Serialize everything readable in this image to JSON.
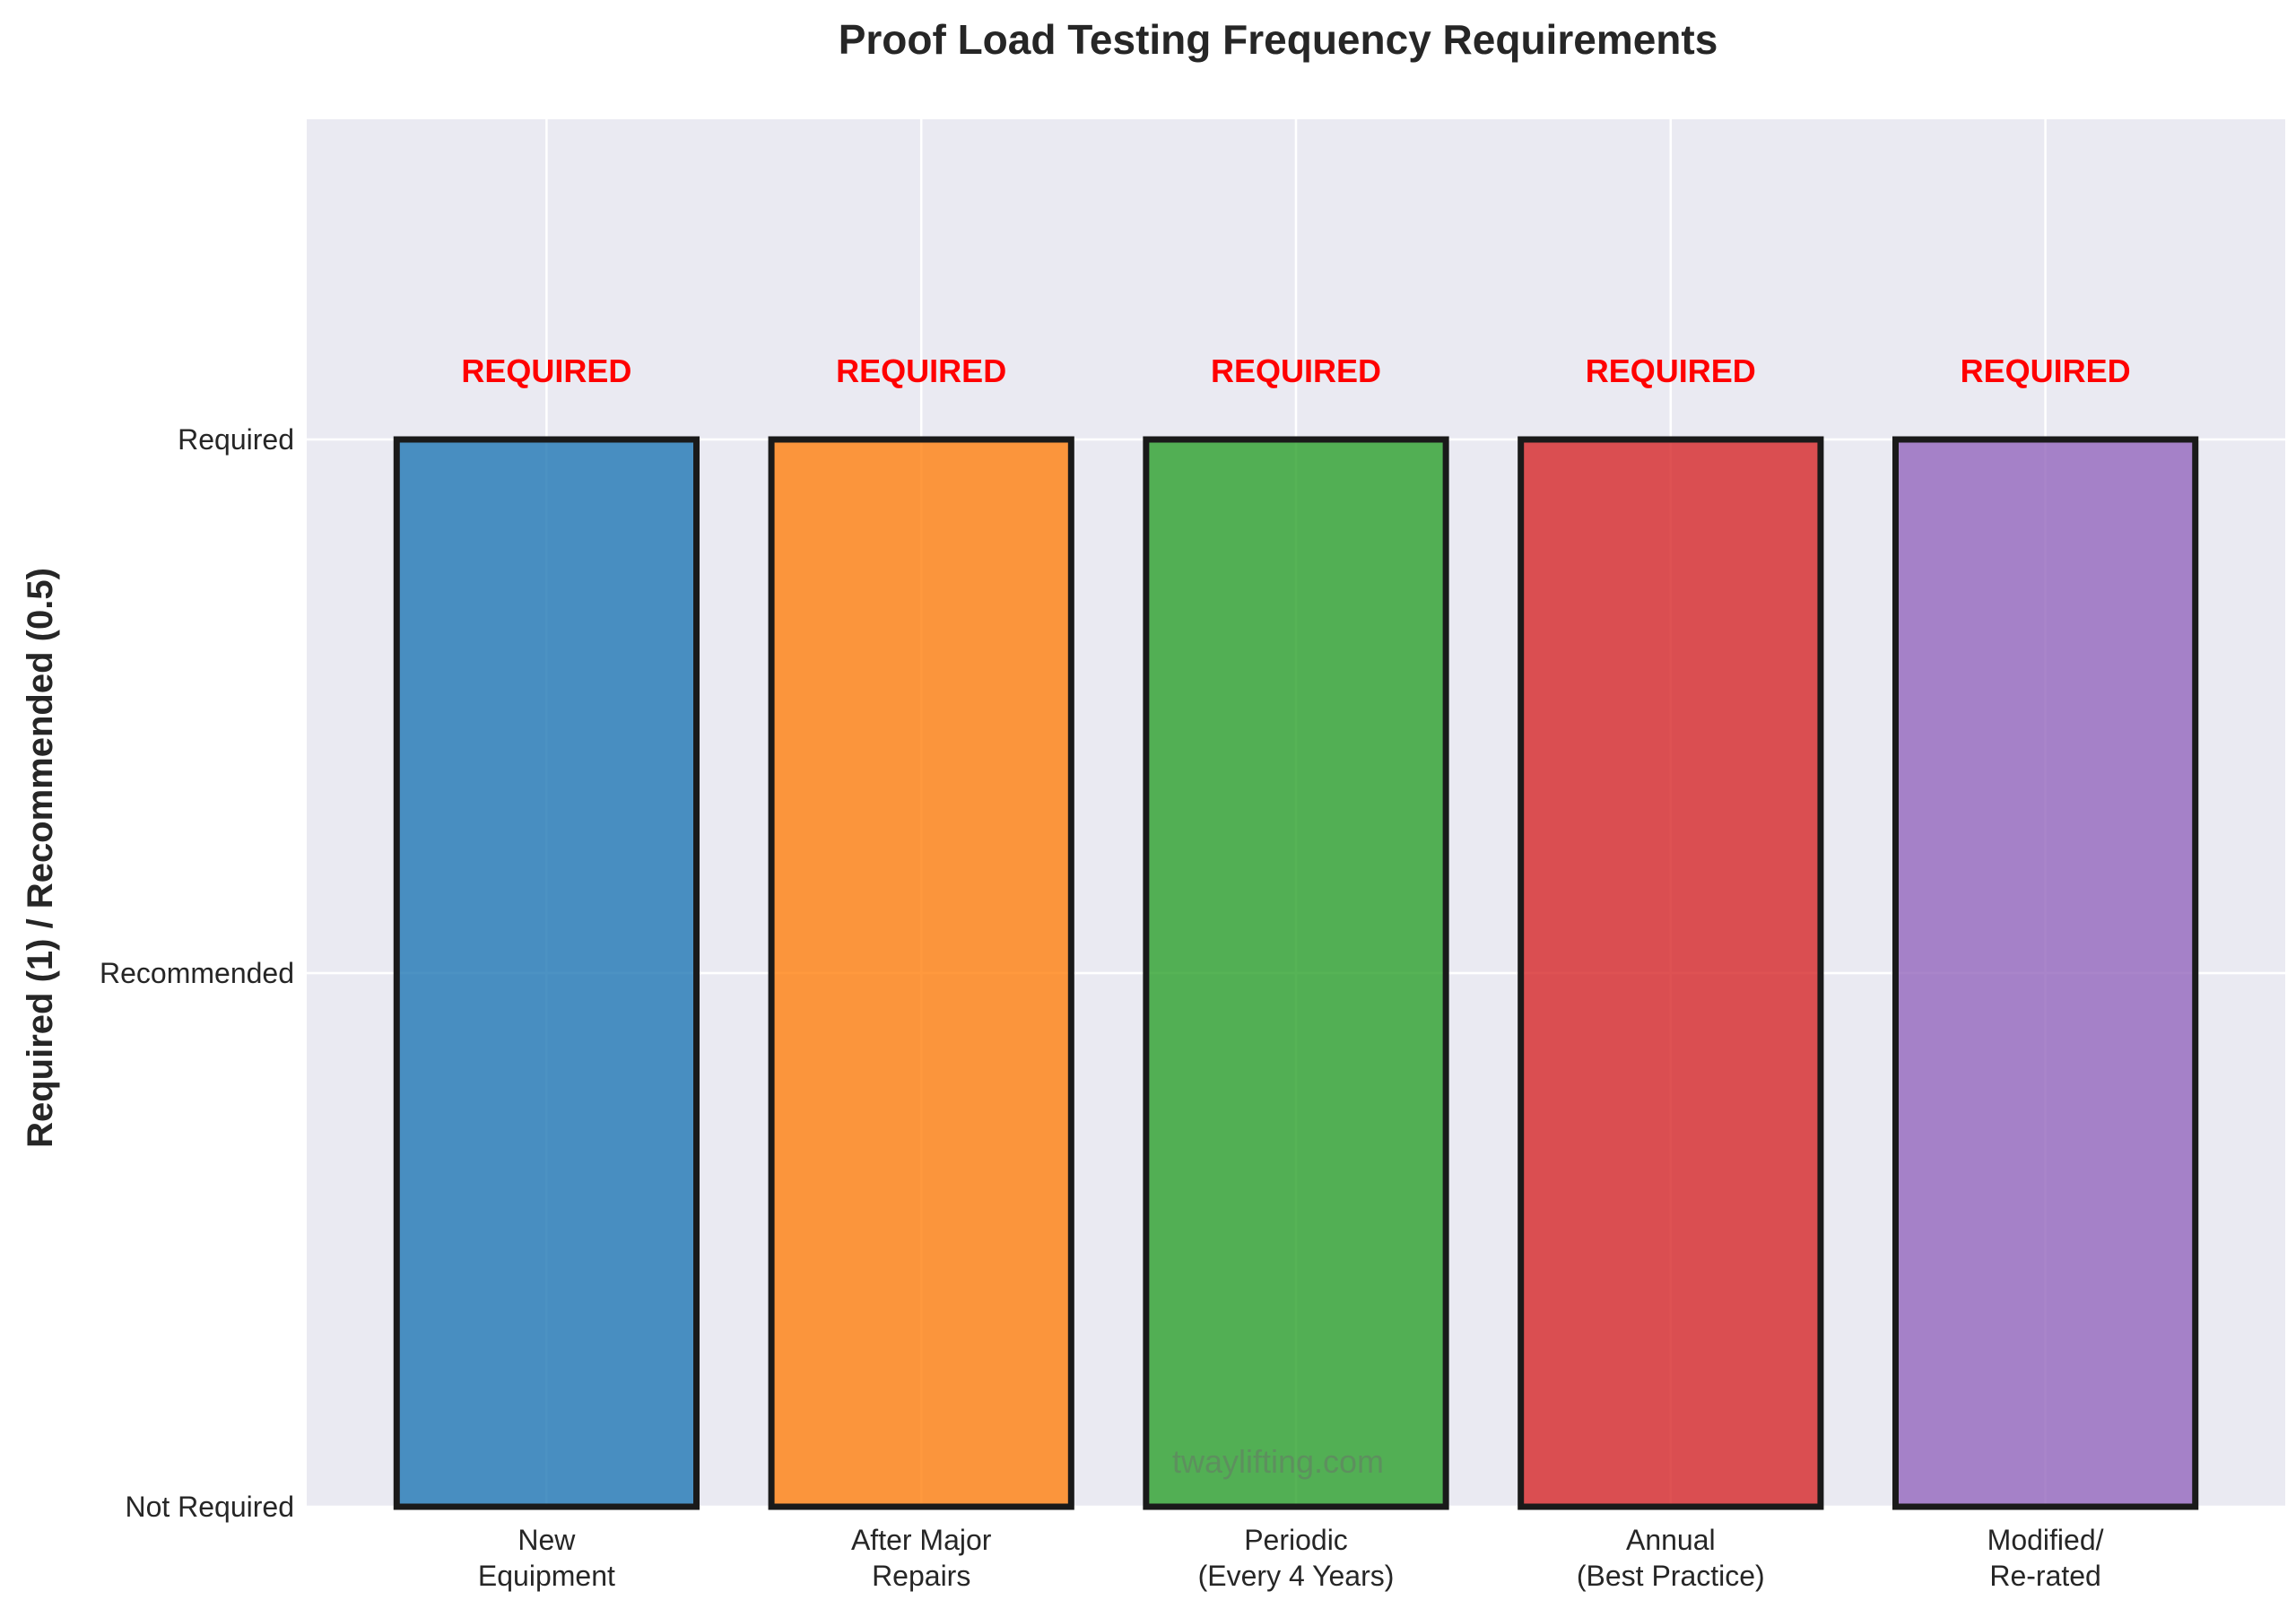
{
  "chart_data": {
    "type": "bar",
    "title": "Proof Load Testing Frequency Requirements",
    "xlabel": "",
    "ylabel": "Required (1) / Recommended (0.5)",
    "categories": [
      [
        "New",
        "Equipment"
      ],
      [
        "After Major",
        "Repairs"
      ],
      [
        "Periodic",
        "(Every 4 Years)"
      ],
      [
        "Annual",
        "(Best Practice)"
      ],
      [
        "Modified/",
        "Re-rated"
      ]
    ],
    "values": [
      1,
      1,
      1,
      1,
      1
    ],
    "bar_labels": [
      "REQUIRED",
      "REQUIRED",
      "REQUIRED",
      "REQUIRED",
      "REQUIRED"
    ],
    "bar_colors": [
      "#1f77b4",
      "#ff7f0e",
      "#2ca02c",
      "#d62728",
      "#9467bd"
    ],
    "bar_label_color": "#ff0000",
    "y_ticks": [
      {
        "value": 0,
        "label": "Not Required"
      },
      {
        "value": 0.5,
        "label": "Recommended"
      },
      {
        "value": 1,
        "label": "Required"
      }
    ],
    "ylim": [
      0,
      1.3
    ],
    "grid": true,
    "background_color": "#eaeaf2",
    "watermark": "twaylifting.com"
  }
}
